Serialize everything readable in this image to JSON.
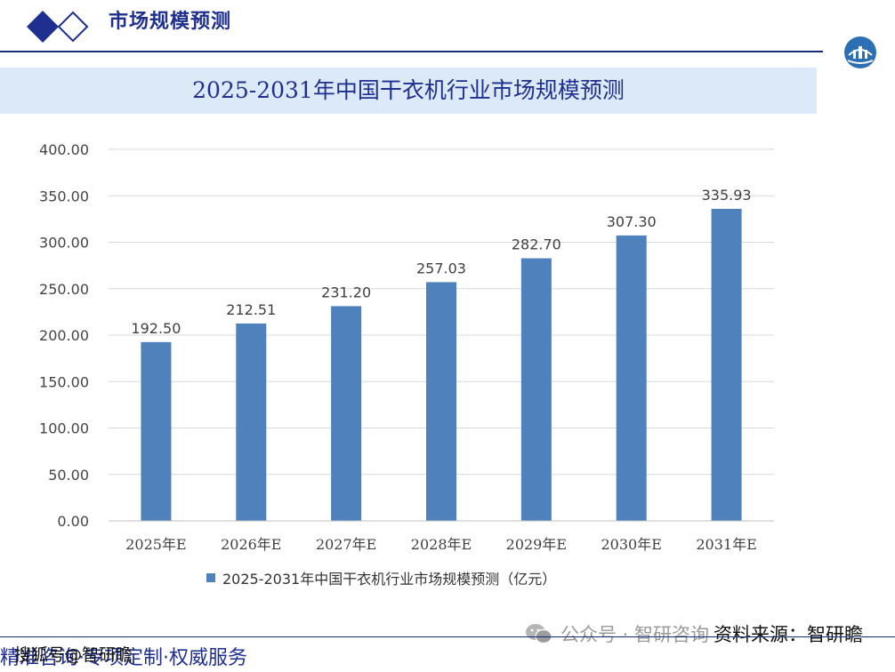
{
  "header": {
    "title": "市场规模预测",
    "corner_logo": "globe-logo-icon"
  },
  "watermark": {
    "text": "公众号 · 智研咨询"
  },
  "source": {
    "text": "资料来源：智研瞻"
  },
  "footer": {
    "tagline": "精准咨询·专项定制·权威服务",
    "credit": "搜狐号@智研瞻"
  },
  "colors": {
    "bar": "#4f81bd",
    "title_band": "#dce9f8",
    "brand": "#1f2f8f"
  },
  "chart_data": {
    "type": "bar",
    "title": "2025-2031年中国干衣机行业市场规模预测",
    "categories": [
      "2025年E",
      "2026年E",
      "2027年E",
      "2028年E",
      "2029年E",
      "2030年E",
      "2031年E"
    ],
    "values": [
      192.5,
      212.51,
      231.2,
      257.03,
      282.7,
      307.3,
      335.93
    ],
    "data_labels": [
      "192.50",
      "212.51",
      "231.20",
      "257.03",
      "282.70",
      "307.30",
      "335.93"
    ],
    "y_ticks": [
      "0.00",
      "50.00",
      "100.00",
      "150.00",
      "200.00",
      "250.00",
      "300.00",
      "350.00",
      "400.00"
    ],
    "ylim": [
      0,
      400
    ],
    "legend": "2025-2031年中国干衣机行业市场规模预测（亿元）",
    "grid": true,
    "legend_position": "bottom"
  }
}
